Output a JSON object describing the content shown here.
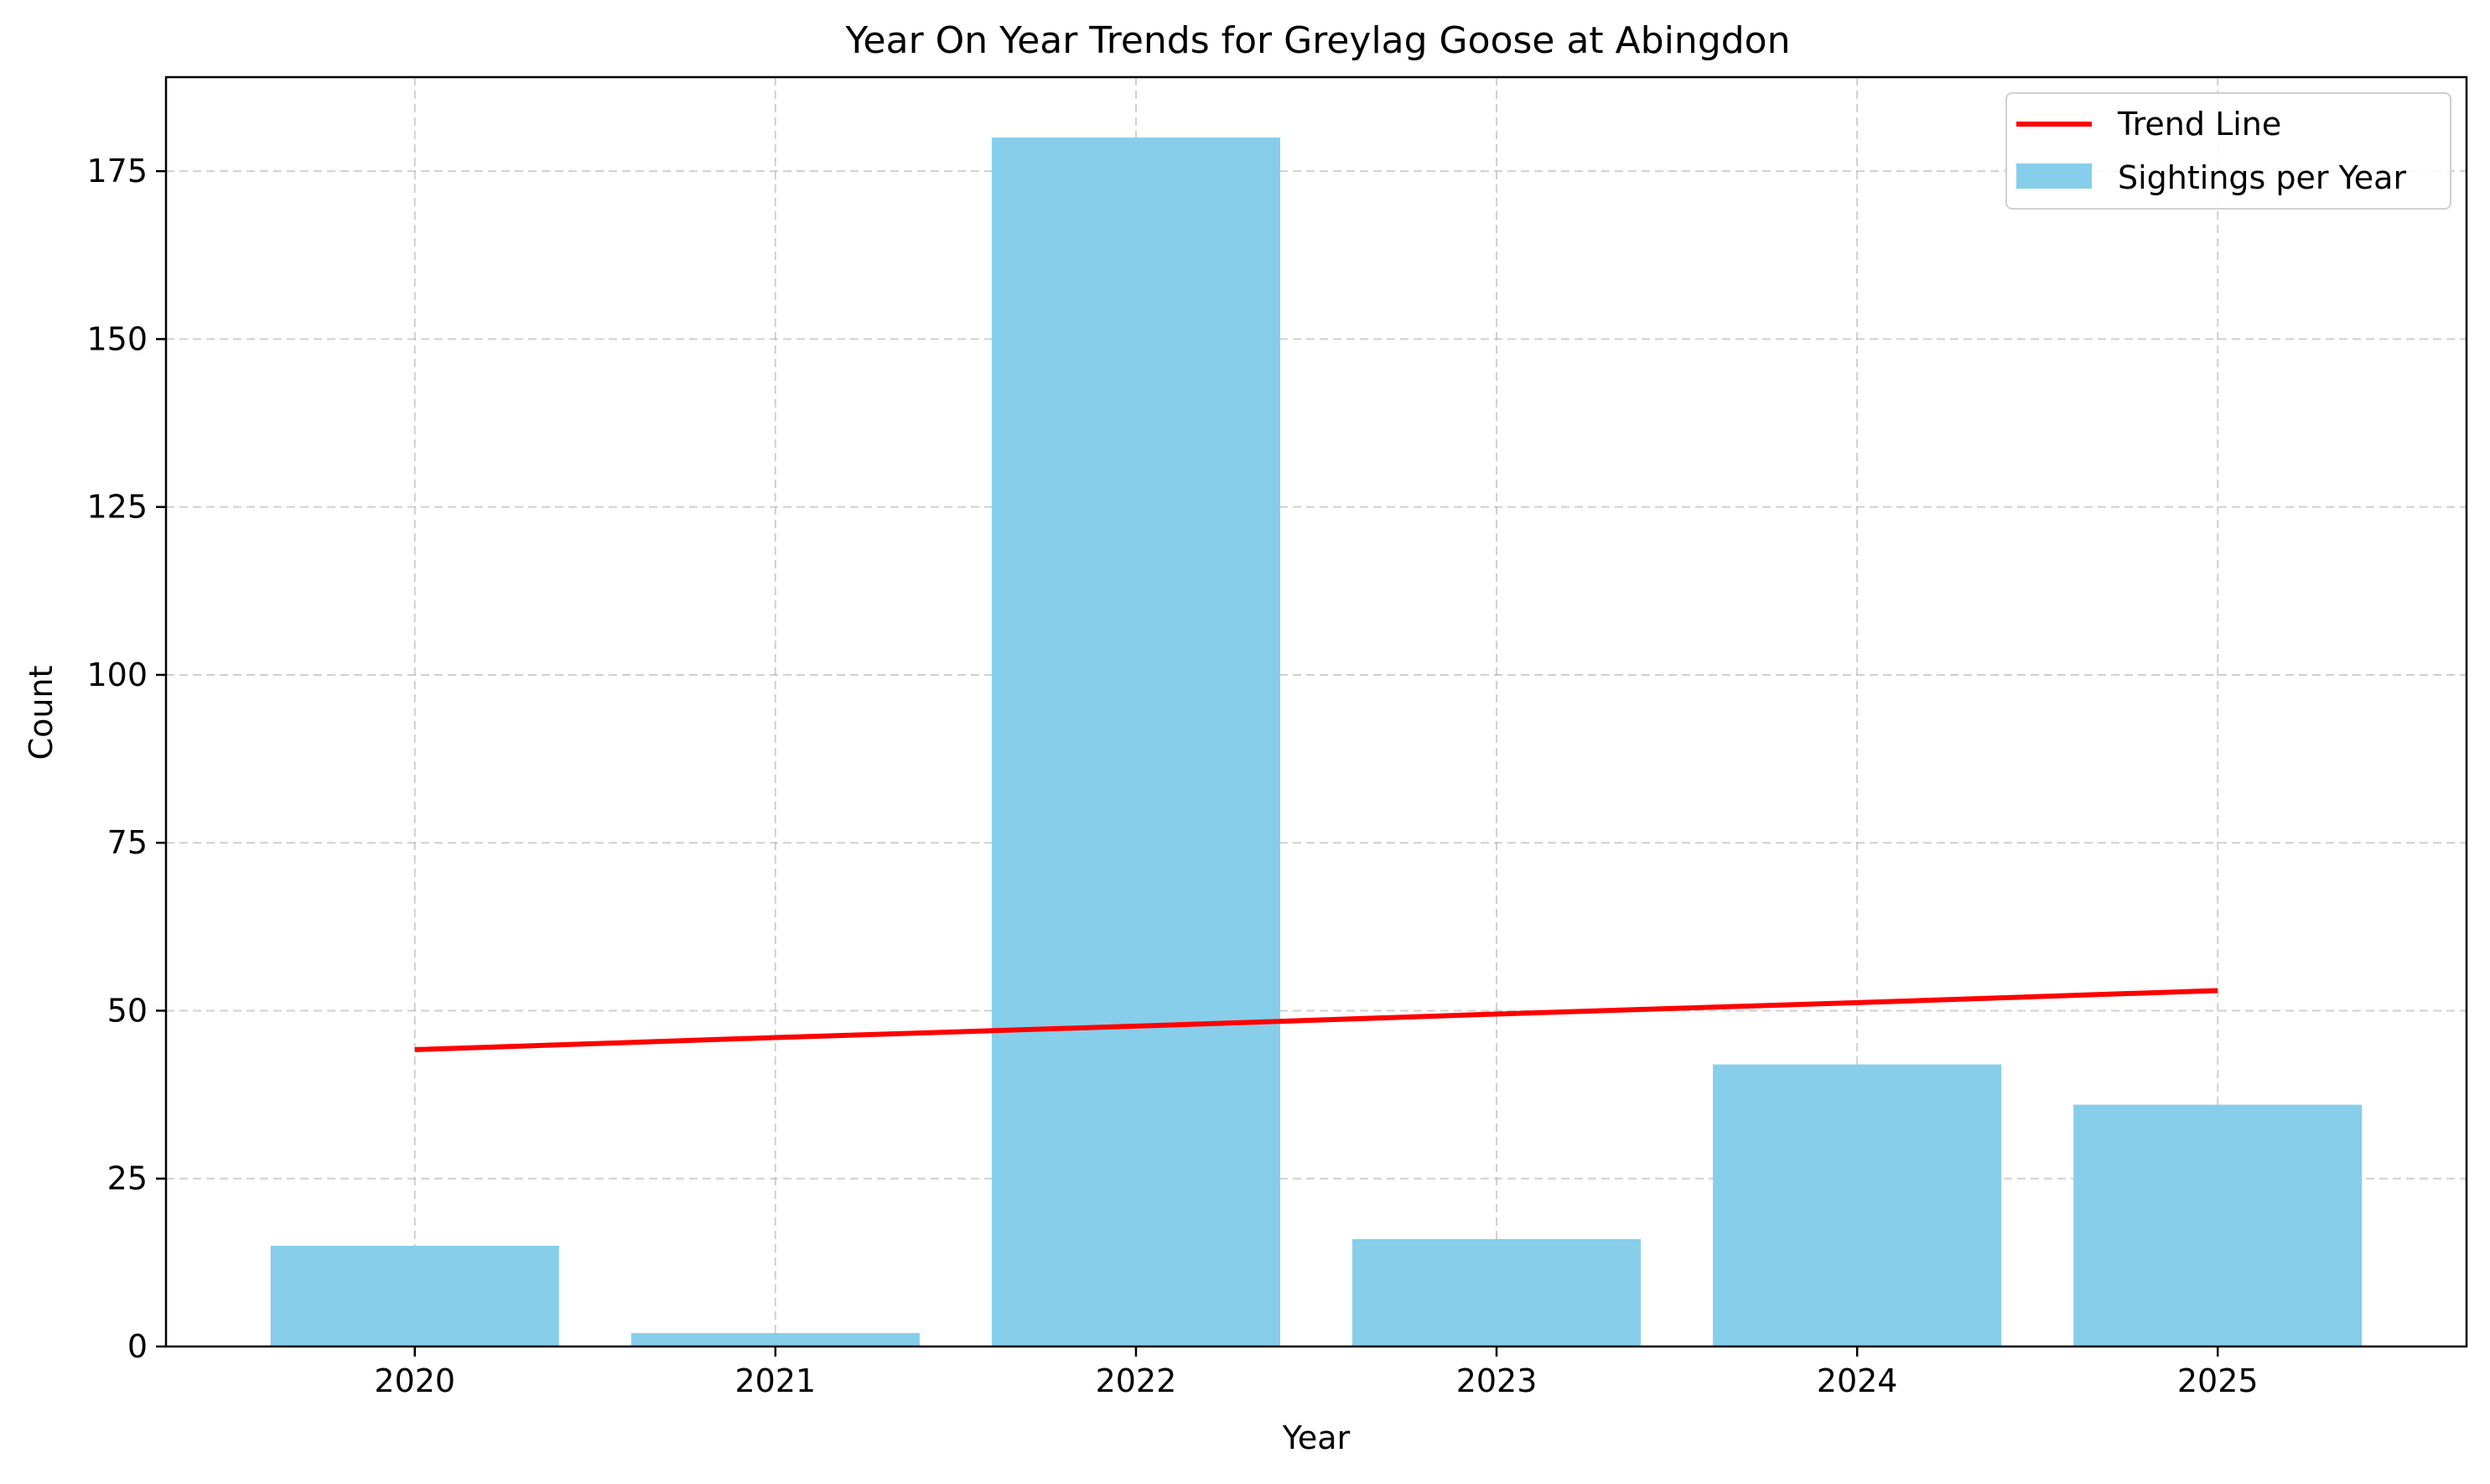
{
  "chart_data": {
    "type": "bar",
    "title": "Year On Year Trends for Greylag Goose at Abingdon",
    "xlabel": "Year",
    "ylabel": "Count",
    "categories": [
      "2020",
      "2021",
      "2022",
      "2023",
      "2024",
      "2025"
    ],
    "series": [
      {
        "name": "Sightings per Year",
        "kind": "bar",
        "color": "#87ceeb",
        "values": [
          15,
          2,
          180,
          16,
          42,
          36
        ]
      },
      {
        "name": "Trend Line",
        "kind": "line",
        "color": "#ff0000",
        "values": [
          44.2,
          46.0,
          47.7,
          49.5,
          51.2,
          53.0
        ]
      }
    ],
    "ylim": [
      0,
      189
    ],
    "yticks": [
      0,
      25,
      50,
      75,
      100,
      125,
      150,
      175
    ],
    "grid": true,
    "legend": "top-right"
  }
}
